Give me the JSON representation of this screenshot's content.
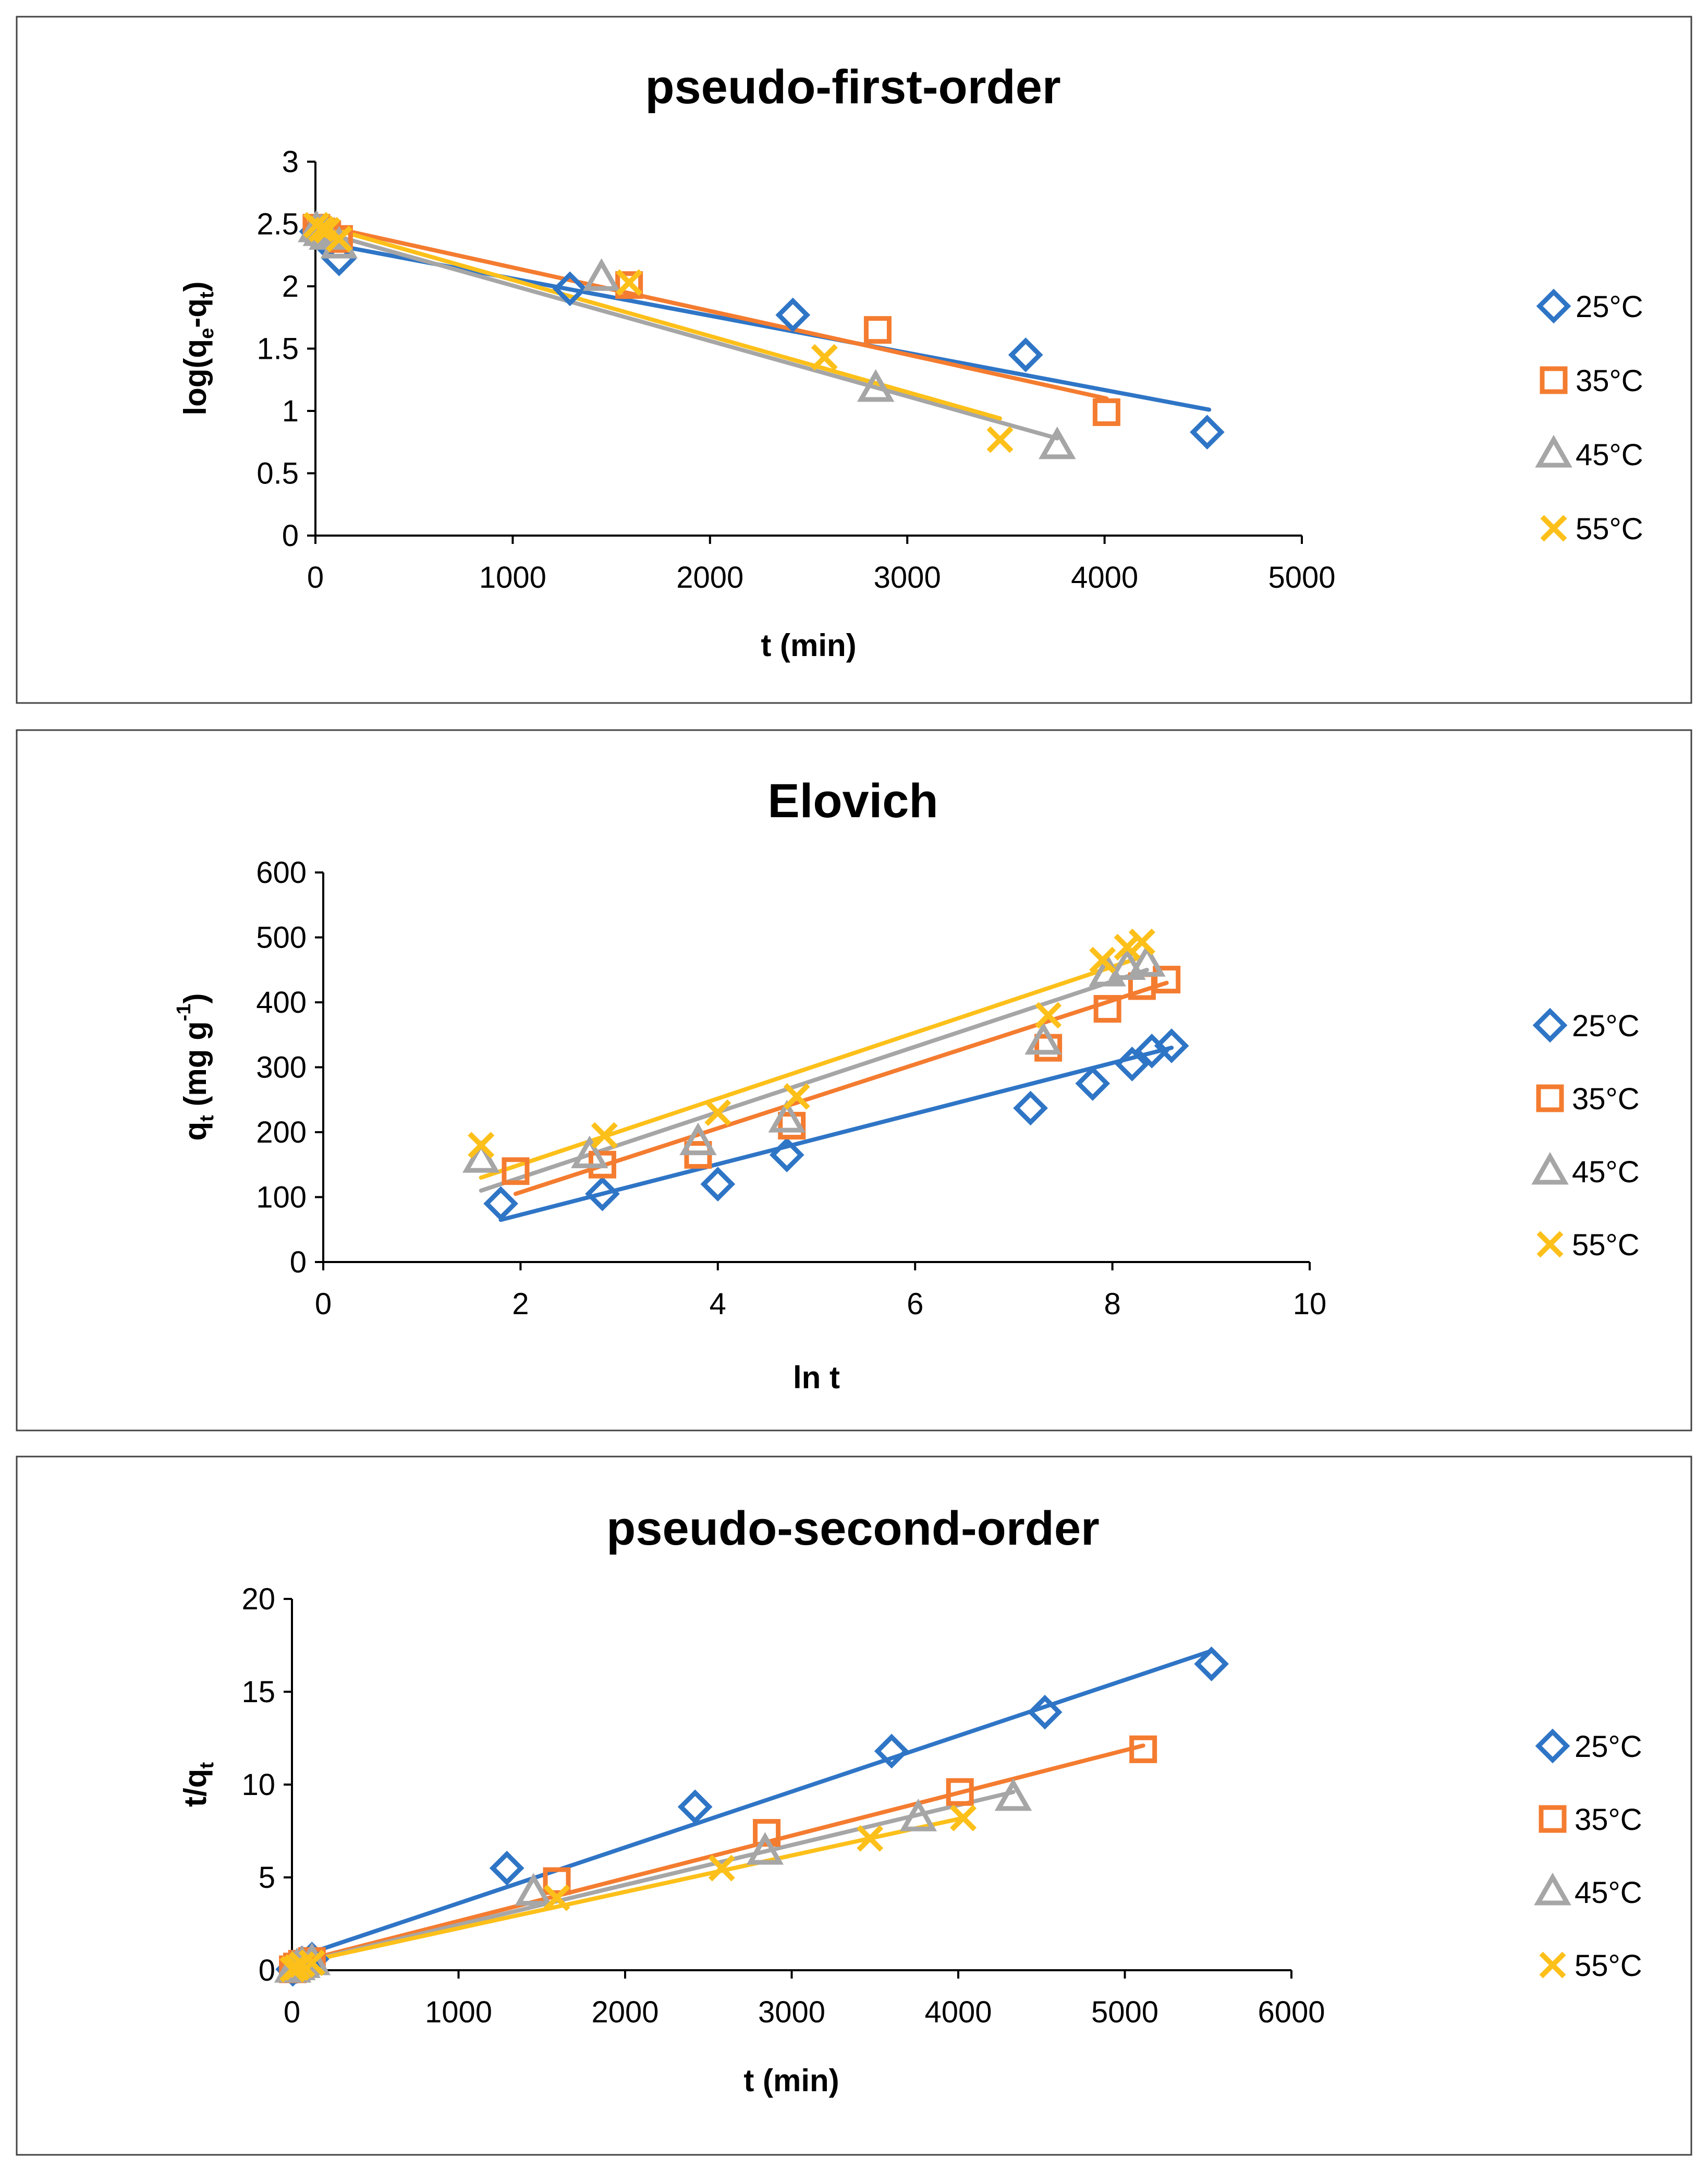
{
  "colors": {
    "25C": "#2f75c6",
    "35C": "#f47c30",
    "45C": "#a6a6a6",
    "55C": "#fdc01a"
  },
  "chart_data": [
    {
      "id": "pfo",
      "type": "scatter",
      "title": "pseudo-first-order",
      "xlabel": "t (min)",
      "ylabel": {
        "main": "log(q",
        "sub1": "e",
        "mid": "-q",
        "sub2": "t",
        "end": ")"
      },
      "xlim": [
        0,
        5000
      ],
      "ylim": [
        0,
        3
      ],
      "xticks": [
        0,
        1000,
        2000,
        3000,
        4000,
        5000
      ],
      "xtick_labels": [
        "0",
        "1000",
        "2000",
        "3000",
        "4000",
        "5000"
      ],
      "yticks": [
        0,
        0.5,
        1,
        1.5,
        2,
        2.5,
        3
      ],
      "ytick_labels": [
        "0",
        "0.5",
        "1",
        "1.5",
        "2",
        "2.5",
        "3"
      ],
      "legend_position": "right",
      "series": [
        {
          "name": "25°C",
          "color_key": "25C",
          "marker": "diamond",
          "x": [
            5,
            30,
            60,
            120,
            1290,
            2420,
            3600,
            4520
          ],
          "y": [
            2.44,
            2.4,
            2.35,
            2.22,
            1.98,
            1.77,
            1.45,
            0.83
          ],
          "fit": [
            [
              0,
              2.36
            ],
            [
              4530,
              1.01
            ]
          ]
        },
        {
          "name": "35°C",
          "color_key": "35C",
          "marker": "square",
          "x": [
            5,
            30,
            60,
            120,
            1590,
            2850,
            4010
          ],
          "y": [
            2.47,
            2.44,
            2.42,
            2.38,
            2.01,
            1.65,
            0.99
          ],
          "fit": [
            [
              0,
              2.5
            ],
            [
              4010,
              1.1
            ]
          ]
        },
        {
          "name": "45°C",
          "color_key": "45C",
          "marker": "triangle",
          "x": [
            5,
            30,
            60,
            120,
            1450,
            2840,
            3760
          ],
          "y": [
            2.46,
            2.43,
            2.4,
            2.33,
            2.07,
            1.18,
            0.72
          ],
          "fit": [
            [
              0,
              2.45
            ],
            [
              3760,
              0.78
            ]
          ]
        },
        {
          "name": "55°C",
          "color_key": "55C",
          "marker": "cross",
          "x": [
            5,
            30,
            60,
            120,
            1590,
            2580,
            3470
          ],
          "y": [
            2.49,
            2.46,
            2.45,
            2.38,
            2.03,
            1.43,
            0.77
          ],
          "fit": [
            [
              0,
              2.5
            ],
            [
              3470,
              0.94
            ]
          ]
        }
      ]
    },
    {
      "id": "elovich",
      "type": "scatter",
      "title": "Elovich",
      "xlabel": "ln t",
      "ylabel": {
        "main": "q",
        "sub": "t",
        "rest": " (mg g",
        "sup": "-1",
        "end": ")"
      },
      "xlim": [
        0,
        10
      ],
      "ylim": [
        0,
        600
      ],
      "xticks": [
        0,
        2,
        4,
        6,
        8,
        10
      ],
      "xtick_labels": [
        "0",
        "2",
        "4",
        "6",
        "8",
        "10"
      ],
      "yticks": [
        0,
        100,
        200,
        300,
        400,
        500,
        600
      ],
      "ytick_labels": [
        "0",
        "100",
        "200",
        "300",
        "400",
        "500",
        "600"
      ],
      "legend_position": "right",
      "series": [
        {
          "name": "25°C",
          "color_key": "25C",
          "marker": "diamond",
          "x": [
            1.8,
            2.83,
            4.0,
            4.7,
            7.17,
            7.8,
            8.2,
            8.4,
            8.6
          ],
          "y": [
            90,
            105,
            120,
            165,
            237,
            275,
            305,
            325,
            333
          ],
          "fit": [
            [
              1.8,
              65
            ],
            [
              8.6,
              330
            ]
          ]
        },
        {
          "name": "35°C",
          "color_key": "35C",
          "marker": "square",
          "x": [
            1.95,
            2.83,
            3.8,
            4.75,
            7.35,
            7.95,
            8.3,
            8.55
          ],
          "y": [
            140,
            150,
            165,
            210,
            330,
            390,
            425,
            435
          ],
          "fit": [
            [
              1.95,
              105
            ],
            [
              8.55,
              430
            ]
          ]
        },
        {
          "name": "45°C",
          "color_key": "45C",
          "marker": "triangle",
          "x": [
            1.6,
            2.7,
            3.8,
            4.7,
            7.3,
            7.95,
            8.15,
            8.35
          ],
          "y": [
            158,
            165,
            185,
            220,
            340,
            445,
            455,
            460
          ],
          "fit": [
            [
              1.6,
              110
            ],
            [
              8.35,
              450
            ]
          ]
        },
        {
          "name": "55°C",
          "color_key": "55C",
          "marker": "cross",
          "x": [
            1.6,
            2.85,
            4.0,
            4.8,
            7.35,
            7.9,
            8.15,
            8.3
          ],
          "y": [
            180,
            195,
            230,
            255,
            380,
            465,
            485,
            493
          ],
          "fit": [
            [
              1.6,
              130
            ],
            [
              8.3,
              470
            ]
          ]
        }
      ]
    },
    {
      "id": "pso",
      "type": "scatter",
      "title": "pseudo-second-order",
      "xlabel": "t (min)",
      "ylabel": {
        "main": "t/q",
        "sub": "t"
      },
      "xlim": [
        0,
        6000
      ],
      "ylim": [
        0,
        20
      ],
      "xticks": [
        0,
        1000,
        2000,
        3000,
        4000,
        5000,
        6000
      ],
      "xtick_labels": [
        "0",
        "1000",
        "2000",
        "3000",
        "4000",
        "5000",
        "6000"
      ],
      "yticks": [
        0,
        5,
        10,
        15,
        20
      ],
      "ytick_labels": [
        "0",
        "5",
        "10",
        "15",
        "20"
      ],
      "legend_position": "right",
      "series": [
        {
          "name": "25°C",
          "color_key": "25C",
          "marker": "diamond",
          "x": [
            5,
            30,
            60,
            120,
            1290,
            2420,
            3600,
            4520,
            5520
          ],
          "y": [
            0.05,
            0.2,
            0.4,
            0.6,
            5.5,
            8.8,
            11.8,
            13.9,
            16.5
          ],
          "fit": [
            [
              0,
              0.6
            ],
            [
              5520,
              17.2
            ]
          ]
        },
        {
          "name": "35°C",
          "color_key": "35C",
          "marker": "square",
          "x": [
            5,
            30,
            60,
            120,
            1590,
            2850,
            4010,
            5110
          ],
          "y": [
            0.05,
            0.2,
            0.35,
            0.5,
            4.8,
            7.4,
            9.6,
            11.9
          ],
          "fit": [
            [
              0,
              0.35
            ],
            [
              5110,
              12.1
            ]
          ]
        },
        {
          "name": "45°C",
          "color_key": "45C",
          "marker": "triangle",
          "x": [
            5,
            30,
            60,
            120,
            1450,
            2840,
            3760,
            4330
          ],
          "y": [
            0.05,
            0.18,
            0.3,
            0.45,
            4.2,
            6.4,
            8.2,
            9.3
          ],
          "fit": [
            [
              0,
              0.3
            ],
            [
              4330,
              9.6
            ]
          ]
        },
        {
          "name": "55°C",
          "color_key": "55C",
          "marker": "cross",
          "x": [
            5,
            30,
            60,
            120,
            1590,
            2580,
            3470,
            4030
          ],
          "y": [
            0.05,
            0.15,
            0.3,
            0.4,
            3.9,
            5.5,
            7.1,
            8.2
          ],
          "fit": [
            [
              0,
              0.3
            ],
            [
              4030,
              8.2
            ]
          ]
        }
      ]
    }
  ]
}
